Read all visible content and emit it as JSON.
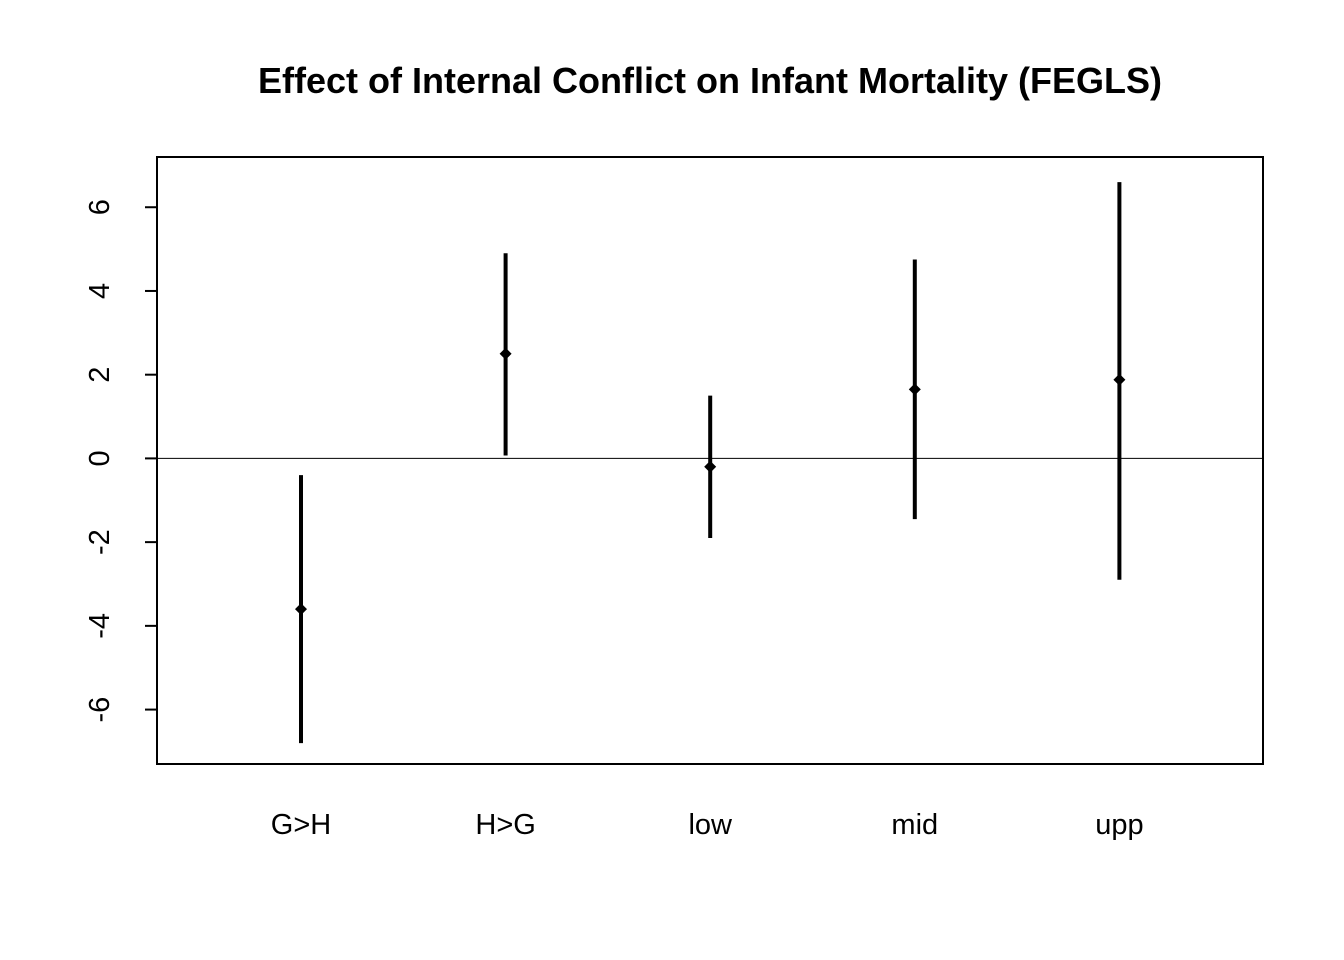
{
  "chart_data": {
    "type": "errorbar",
    "title": "Effect of Internal Conflict on Infant Mortality (FEGLS)",
    "xlabel": "",
    "ylabel": "",
    "categories": [
      "G>H",
      "H>G",
      "low",
      "mid",
      "upp"
    ],
    "series": [
      {
        "estimate": [
          -3.6,
          2.5,
          -0.2,
          1.65,
          1.88
        ],
        "lower": [
          -6.8,
          0.07,
          -1.9,
          -1.45,
          -2.9
        ],
        "upper": [
          -0.4,
          4.9,
          1.5,
          4.75,
          6.6
        ]
      }
    ],
    "yticks": [
      -6,
      -4,
      -2,
      0,
      2,
      4,
      6
    ],
    "ylim": [
      -7.3,
      7.2
    ],
    "reference_line_y": 0,
    "grid": false,
    "legend": "none",
    "colors": {
      "ink": "#000000",
      "background": "#ffffff"
    }
  }
}
